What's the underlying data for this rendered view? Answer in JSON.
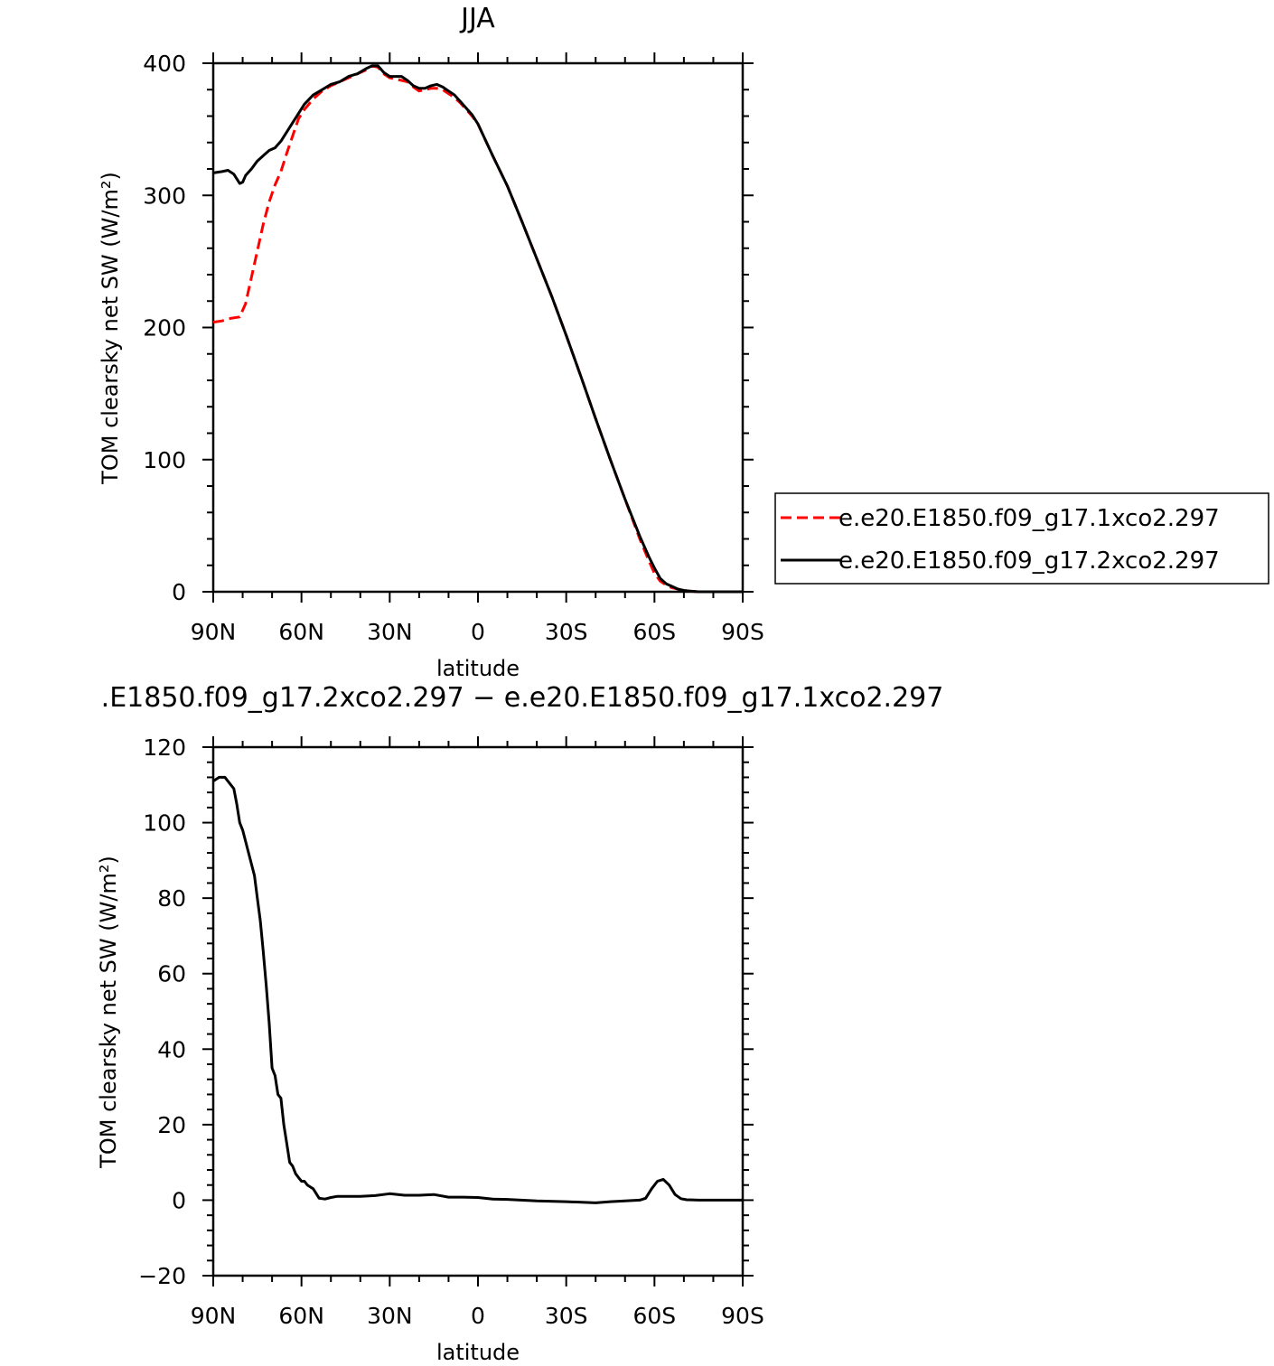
{
  "chart_data": [
    {
      "type": "line",
      "title": "JJA",
      "xlabel": "latitude",
      "ylabel": "TOM clearsky net SW (W/m²)",
      "xlim": [
        90,
        -90
      ],
      "ylim": [
        0,
        400
      ],
      "x_ticks": [
        {
          "value": 90,
          "label": "90N"
        },
        {
          "value": 60,
          "label": "60N"
        },
        {
          "value": 30,
          "label": "30N"
        },
        {
          "value": 0,
          "label": "0"
        },
        {
          "value": -30,
          "label": "30S"
        },
        {
          "value": -60,
          "label": "60S"
        },
        {
          "value": -90,
          "label": "90S"
        }
      ],
      "y_ticks": [
        {
          "value": 0,
          "label": "0"
        },
        {
          "value": 100,
          "label": "100"
        },
        {
          "value": 200,
          "label": "200"
        },
        {
          "value": 300,
          "label": "300"
        },
        {
          "value": 400,
          "label": "400"
        }
      ],
      "legend_position": "right",
      "series": [
        {
          "name": "e.e20.E1850.f09_g17.1xco2.297",
          "color": "#ff0000",
          "dash": "dashed",
          "x": [
            90,
            87,
            84,
            81,
            79,
            77,
            75,
            73,
            71,
            69,
            67,
            65,
            63,
            61,
            59,
            56,
            53,
            50,
            47,
            44,
            41,
            38,
            36,
            34,
            32,
            30,
            28,
            26,
            24,
            22,
            20,
            18,
            16,
            14,
            12,
            10,
            8,
            6,
            4,
            2,
            0,
            -5,
            -10,
            -15,
            -20,
            -25,
            -30,
            -35,
            -40,
            -45,
            -50,
            -55,
            -58,
            -60,
            -62,
            -64,
            -66,
            -68,
            -70,
            -72,
            -75,
            -78,
            -80,
            -85,
            -90
          ],
          "values": [
            204,
            205,
            207,
            208,
            218,
            238,
            258,
            278,
            295,
            308,
            318,
            332,
            345,
            358,
            365,
            373,
            379,
            383,
            386,
            389,
            392,
            395,
            398,
            397,
            392,
            389,
            388,
            387,
            386,
            382,
            379,
            380,
            381,
            381,
            380,
            377,
            374,
            370,
            365,
            360,
            354,
            330,
            307,
            280,
            252,
            224,
            194,
            163,
            131,
            100,
            70,
            40,
            24,
            14,
            8,
            5,
            3,
            2,
            1,
            0.5,
            0,
            0,
            0,
            0,
            0
          ]
        },
        {
          "name": "e.e20.E1850.f09_g17.2xco2.297",
          "color": "#000000",
          "dash": "solid",
          "x": [
            90,
            87,
            85,
            83,
            81,
            80,
            79,
            77,
            75,
            73,
            71,
            69,
            67,
            65,
            63,
            61,
            59,
            56,
            53,
            50,
            47,
            44,
            41,
            38,
            36,
            34,
            32,
            30,
            28,
            26,
            24,
            22,
            20,
            18,
            16,
            14,
            12,
            10,
            8,
            6,
            4,
            2,
            0,
            -5,
            -10,
            -15,
            -20,
            -25,
            -30,
            -35,
            -40,
            -45,
            -50,
            -55,
            -58,
            -60,
            -62,
            -64,
            -66,
            -68,
            -70,
            -72,
            -75,
            -78,
            -80,
            -85,
            -90
          ],
          "values": [
            317,
            318,
            319,
            316,
            309,
            310,
            315,
            320,
            326,
            330,
            334,
            336,
            341,
            348,
            355,
            362,
            369,
            376,
            380,
            384,
            386,
            390,
            392,
            396,
            398,
            398,
            393,
            390,
            390,
            390,
            387,
            383,
            381,
            381,
            383,
            384,
            382,
            379,
            376,
            371,
            366,
            361,
            354,
            330,
            307,
            280,
            252,
            224,
            194,
            163,
            131,
            100,
            70,
            42,
            27,
            18,
            10,
            6,
            4,
            2,
            1,
            0.5,
            0,
            0,
            0,
            0,
            0
          ]
        }
      ]
    },
    {
      "type": "line",
      "title": ".E1850.f09_g17.2xco2.297 − e.e20.E1850.f09_g17.1xco2.297",
      "xlabel": "latitude",
      "ylabel": "TOM clearsky net SW (W/m²)",
      "xlim": [
        90,
        -90
      ],
      "ylim": [
        -20,
        120
      ],
      "x_ticks": [
        {
          "value": 90,
          "label": "90N"
        },
        {
          "value": 60,
          "label": "60N"
        },
        {
          "value": 30,
          "label": "30N"
        },
        {
          "value": 0,
          "label": "0"
        },
        {
          "value": -30,
          "label": "30S"
        },
        {
          "value": -60,
          "label": "60S"
        },
        {
          "value": -90,
          "label": "90S"
        }
      ],
      "y_ticks": [
        {
          "value": -20,
          "label": "−20"
        },
        {
          "value": 0,
          "label": "0"
        },
        {
          "value": 20,
          "label": "20"
        },
        {
          "value": 40,
          "label": "40"
        },
        {
          "value": 60,
          "label": "60"
        },
        {
          "value": 80,
          "label": "80"
        },
        {
          "value": 100,
          "label": "100"
        },
        {
          "value": 120,
          "label": "120"
        }
      ],
      "series": [
        {
          "color": "#000000",
          "dash": "solid",
          "x": [
            90,
            88,
            86,
            84,
            83,
            82,
            81,
            80,
            78,
            76,
            75,
            74,
            73,
            72,
            71,
            70,
            69,
            68,
            67,
            66,
            65,
            64,
            63,
            62,
            61,
            60,
            59,
            58,
            56,
            54,
            52,
            50,
            48,
            45,
            40,
            35,
            30,
            25,
            20,
            15,
            10,
            5,
            0,
            -5,
            -10,
            -20,
            -30,
            -40,
            -45,
            -50,
            -55,
            -57,
            -59,
            -61,
            -63,
            -65,
            -67,
            -69,
            -71,
            -75,
            -80,
            -85,
            -90
          ],
          "values": [
            111,
            112,
            112,
            110,
            109,
            105,
            100,
            98,
            92,
            86,
            80,
            74,
            66,
            57,
            47,
            35,
            33,
            28,
            27,
            20,
            15,
            10,
            9,
            7,
            6,
            5,
            5,
            4,
            3,
            0.5,
            0.3,
            0.7,
            1,
            1,
            1,
            1.2,
            1.7,
            1.3,
            1.3,
            1.5,
            0.8,
            0.8,
            0.7,
            0.3,
            0.2,
            -0.2,
            -0.4,
            -0.7,
            -0.4,
            -0.2,
            0,
            0.5,
            3,
            5,
            5.5,
            4,
            1.5,
            0.4,
            0.1,
            0,
            0,
            0,
            0
          ]
        }
      ]
    }
  ]
}
